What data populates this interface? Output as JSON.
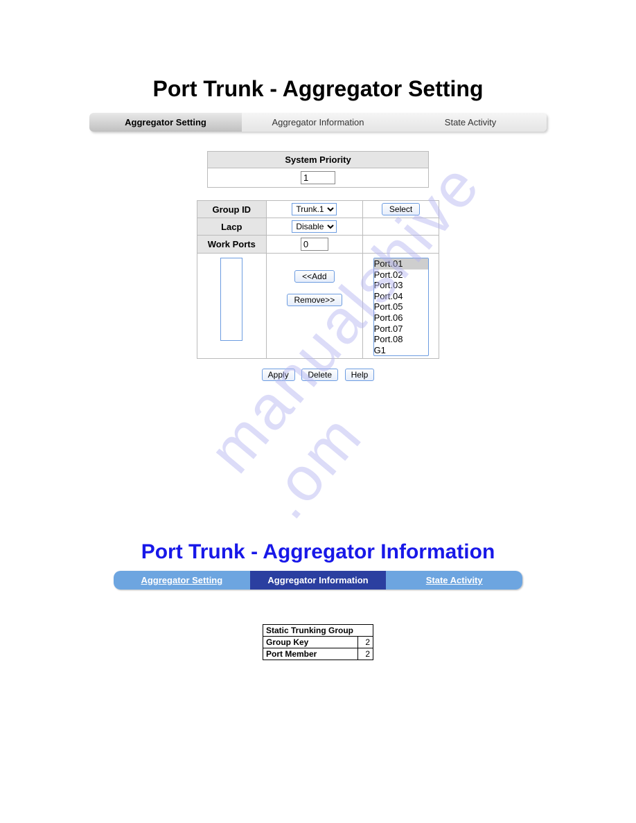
{
  "watermark": "manualshive .om",
  "section1": {
    "title": "Port Trunk - Aggregator Setting",
    "tabs": [
      {
        "label": "Aggregator Setting",
        "active": true
      },
      {
        "label": "Aggregator Information",
        "active": false
      },
      {
        "label": "State Activity",
        "active": false
      }
    ],
    "system_priority_label": "System Priority",
    "system_priority_value": "1",
    "group_id_label": "Group ID",
    "group_id_value": "Trunk.1",
    "select_button": "Select",
    "lacp_label": "Lacp",
    "lacp_value": "Disable",
    "work_ports_label": "Work Ports",
    "work_ports_value": "0",
    "add_button": "<<Add",
    "remove_button": "Remove>>",
    "available_ports": [
      "Port.01",
      "Port.02",
      "Port.03",
      "Port.04",
      "Port.05",
      "Port.06",
      "Port.07",
      "Port.08",
      "G1"
    ],
    "bottom_buttons": {
      "apply": "Apply",
      "delete": "Delete",
      "help": "Help"
    }
  },
  "section2": {
    "title": "Port Trunk - Aggregator Information",
    "tabs": [
      {
        "label": "Aggregator Setting",
        "style": "light"
      },
      {
        "label": "Aggregator Information",
        "style": "dark"
      },
      {
        "label": "State Activity",
        "style": "light"
      }
    ],
    "table_title": "Static Trunking Group",
    "group_key_label": "Group Key",
    "group_key_value": "2",
    "port_member_label": "Port Member",
    "port_member_value": "2"
  },
  "colors": {
    "title2": "#1818e8",
    "tab_light": "#6da5e0",
    "tab_dark": "#2b3fa0",
    "btn_border": "#6c9ce0",
    "watermark": "#b3b3f0"
  }
}
